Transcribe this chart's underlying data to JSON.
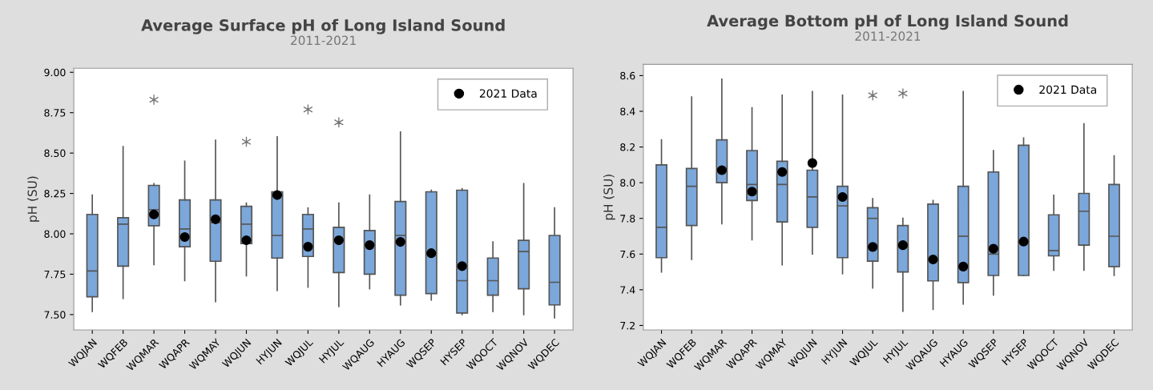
{
  "chart_data": [
    {
      "type": "box",
      "title": "Average Surface pH of Long Island Sound",
      "subtitle": "2011-2021",
      "ylabel": "pH (SU)",
      "categories": [
        "WQJAN",
        "WQFEB",
        "WQMAR",
        "WQAPR",
        "WQMAY",
        "WQJUN",
        "HYJUN",
        "WQJUL",
        "HYJUL",
        "WQAUG",
        "HYAUG",
        "WQSEP",
        "HYSEP",
        "WQOCT",
        "WQNOV",
        "WQDEC"
      ],
      "ylim": [
        7.405,
        9.025
      ],
      "yticks": [
        {
          "value": 7.5,
          "label": "7.50"
        },
        {
          "value": 7.75,
          "label": "7.75"
        },
        {
          "value": 8.0,
          "label": "8.00"
        },
        {
          "value": 8.25,
          "label": "8.25"
        },
        {
          "value": 8.5,
          "label": "8.50"
        },
        {
          "value": 8.75,
          "label": "8.75"
        },
        {
          "value": 9.0,
          "label": "9.00"
        }
      ],
      "legend": "top right",
      "grid": false,
      "series": [
        {
          "color": "#7ba7da",
          "boxes": [
            {
              "low": 7.52,
              "q1": 7.61,
              "median": 7.77,
              "q3": 8.12,
              "high": 8.24
            },
            {
              "low": 7.6,
              "q1": 7.8,
              "median": 8.06,
              "q3": 8.1,
              "high": 8.54
            },
            {
              "low": 7.81,
              "q1": 8.05,
              "median": 8.15,
              "q3": 8.3,
              "high": 8.31,
              "outliers": [
                8.83
              ]
            },
            {
              "low": 7.71,
              "q1": 7.92,
              "median": 8.03,
              "q3": 8.21,
              "high": 8.45
            },
            {
              "low": 7.58,
              "q1": 7.83,
              "median": 8.07,
              "q3": 8.21,
              "high": 8.58
            },
            {
              "low": 7.74,
              "q1": 7.94,
              "median": 8.06,
              "q3": 8.17,
              "high": 8.19,
              "outliers": [
                8.57
              ]
            },
            {
              "low": 7.65,
              "q1": 7.85,
              "median": 7.99,
              "q3": 8.26,
              "high": 8.6
            },
            {
              "low": 7.67,
              "q1": 7.86,
              "median": 8.03,
              "q3": 8.12,
              "high": 8.16,
              "outliers": [
                8.77
              ]
            },
            {
              "low": 7.55,
              "q1": 7.76,
              "median": 7.96,
              "q3": 8.04,
              "high": 8.19,
              "outliers": [
                8.69
              ]
            },
            {
              "low": 7.66,
              "q1": 7.75,
              "median": 7.93,
              "q3": 8.02,
              "high": 8.24
            },
            {
              "low": 7.56,
              "q1": 7.62,
              "median": 7.99,
              "q3": 8.2,
              "high": 8.63
            },
            {
              "low": 7.59,
              "q1": 7.63,
              "median": 7.88,
              "q3": 8.26,
              "high": 8.27
            },
            {
              "low": 7.5,
              "q1": 7.51,
              "median": 7.71,
              "q3": 8.27,
              "high": 8.28
            },
            {
              "low": 7.52,
              "q1": 7.62,
              "median": 7.71,
              "q3": 7.85,
              "high": 7.95
            },
            {
              "low": 7.5,
              "q1": 7.66,
              "median": 7.89,
              "q3": 7.96,
              "high": 8.31
            },
            {
              "low": 7.48,
              "q1": 7.56,
              "median": 7.7,
              "q3": 7.99,
              "high": 8.16
            }
          ]
        },
        {
          "type": "scatter",
          "name": "2021 Data",
          "color": "#000000",
          "marker": "circle",
          "x": [
            "WQMAR",
            "WQAPR",
            "WQMAY",
            "WQJUN",
            "HYJUN",
            "WQJUL",
            "HYJUL",
            "WQAUG",
            "HYAUG",
            "WQSEP",
            "HYSEP"
          ],
          "values": [
            8.12,
            7.98,
            8.09,
            7.96,
            8.24,
            7.92,
            7.96,
            7.93,
            7.95,
            7.88,
            7.8
          ]
        }
      ]
    },
    {
      "type": "box",
      "title": "Average Bottom pH of Long Island Sound",
      "subtitle": "2011-2021",
      "ylabel": "pH (SU)",
      "categories": [
        "WQJAN",
        "WQFEB",
        "WQMAR",
        "WQAPR",
        "WQMAY",
        "WQJUN",
        "HYJUN",
        "WQJUL",
        "HYJUL",
        "WQAUG",
        "HYAUG",
        "WQSEP",
        "HYSEP",
        "WQOCT",
        "WQNOV",
        "WQDEC"
      ],
      "ylim": [
        7.175,
        8.663
      ],
      "yticks": [
        {
          "value": 7.2,
          "label": "7.2"
        },
        {
          "value": 7.4,
          "label": "7.4"
        },
        {
          "value": 7.6,
          "label": "7.6"
        },
        {
          "value": 7.8,
          "label": "7.8"
        },
        {
          "value": 8.0,
          "label": "8.0"
        },
        {
          "value": 8.2,
          "label": "8.2"
        },
        {
          "value": 8.4,
          "label": "8.4"
        },
        {
          "value": 8.6,
          "label": "8.6"
        }
      ],
      "legend": "top right",
      "grid": false,
      "series": [
        {
          "color": "#7ba7da",
          "boxes": [
            {
              "low": 7.5,
              "q1": 7.58,
              "median": 7.75,
              "q3": 8.1,
              "high": 8.24
            },
            {
              "low": 7.57,
              "q1": 7.76,
              "median": 7.98,
              "q3": 8.08,
              "high": 8.48
            },
            {
              "low": 7.77,
              "q1": 8.0,
              "median": 8.08,
              "q3": 8.24,
              "high": 8.58
            },
            {
              "low": 7.68,
              "q1": 7.9,
              "median": 7.99,
              "q3": 8.18,
              "high": 8.42
            },
            {
              "low": 7.54,
              "q1": 7.78,
              "median": 7.99,
              "q3": 8.12,
              "high": 8.49
            },
            {
              "low": 7.6,
              "q1": 7.75,
              "median": 7.92,
              "q3": 8.07,
              "high": 8.51
            },
            {
              "low": 7.49,
              "q1": 7.58,
              "median": 7.87,
              "q3": 7.98,
              "high": 8.49
            },
            {
              "low": 7.41,
              "q1": 7.56,
              "median": 7.8,
              "q3": 7.86,
              "high": 7.91,
              "outliers": [
                8.49
              ]
            },
            {
              "low": 7.28,
              "q1": 7.5,
              "median": 7.65,
              "q3": 7.76,
              "high": 7.8,
              "outliers": [
                8.5
              ]
            },
            {
              "low": 7.29,
              "q1": 7.45,
              "median": 7.57,
              "q3": 7.88,
              "high": 7.9
            },
            {
              "low": 7.32,
              "q1": 7.44,
              "median": 7.7,
              "q3": 7.98,
              "high": 8.51
            },
            {
              "low": 7.37,
              "q1": 7.48,
              "median": 7.6,
              "q3": 8.06,
              "high": 8.18
            },
            {
              "low": 7.48,
              "q1": 7.48,
              "median": 7.67,
              "q3": 8.21,
              "high": 8.25
            },
            {
              "low": 7.51,
              "q1": 7.59,
              "median": 7.62,
              "q3": 7.82,
              "high": 7.93
            },
            {
              "low": 7.51,
              "q1": 7.65,
              "median": 7.84,
              "q3": 7.94,
              "high": 8.33
            },
            {
              "low": 7.48,
              "q1": 7.53,
              "median": 7.7,
              "q3": 7.99,
              "high": 8.15
            }
          ]
        },
        {
          "type": "scatter",
          "name": "2021 Data",
          "color": "#000000",
          "marker": "circle",
          "x": [
            "WQMAR",
            "WQAPR",
            "WQMAY",
            "WQJUN",
            "HYJUN",
            "WQJUL",
            "HYJUL",
            "WQAUG",
            "HYAUG",
            "WQSEP",
            "HYSEP"
          ],
          "values": [
            8.07,
            7.95,
            8.06,
            8.11,
            7.92,
            7.64,
            7.65,
            7.57,
            7.53,
            7.63,
            7.67
          ]
        }
      ]
    }
  ]
}
